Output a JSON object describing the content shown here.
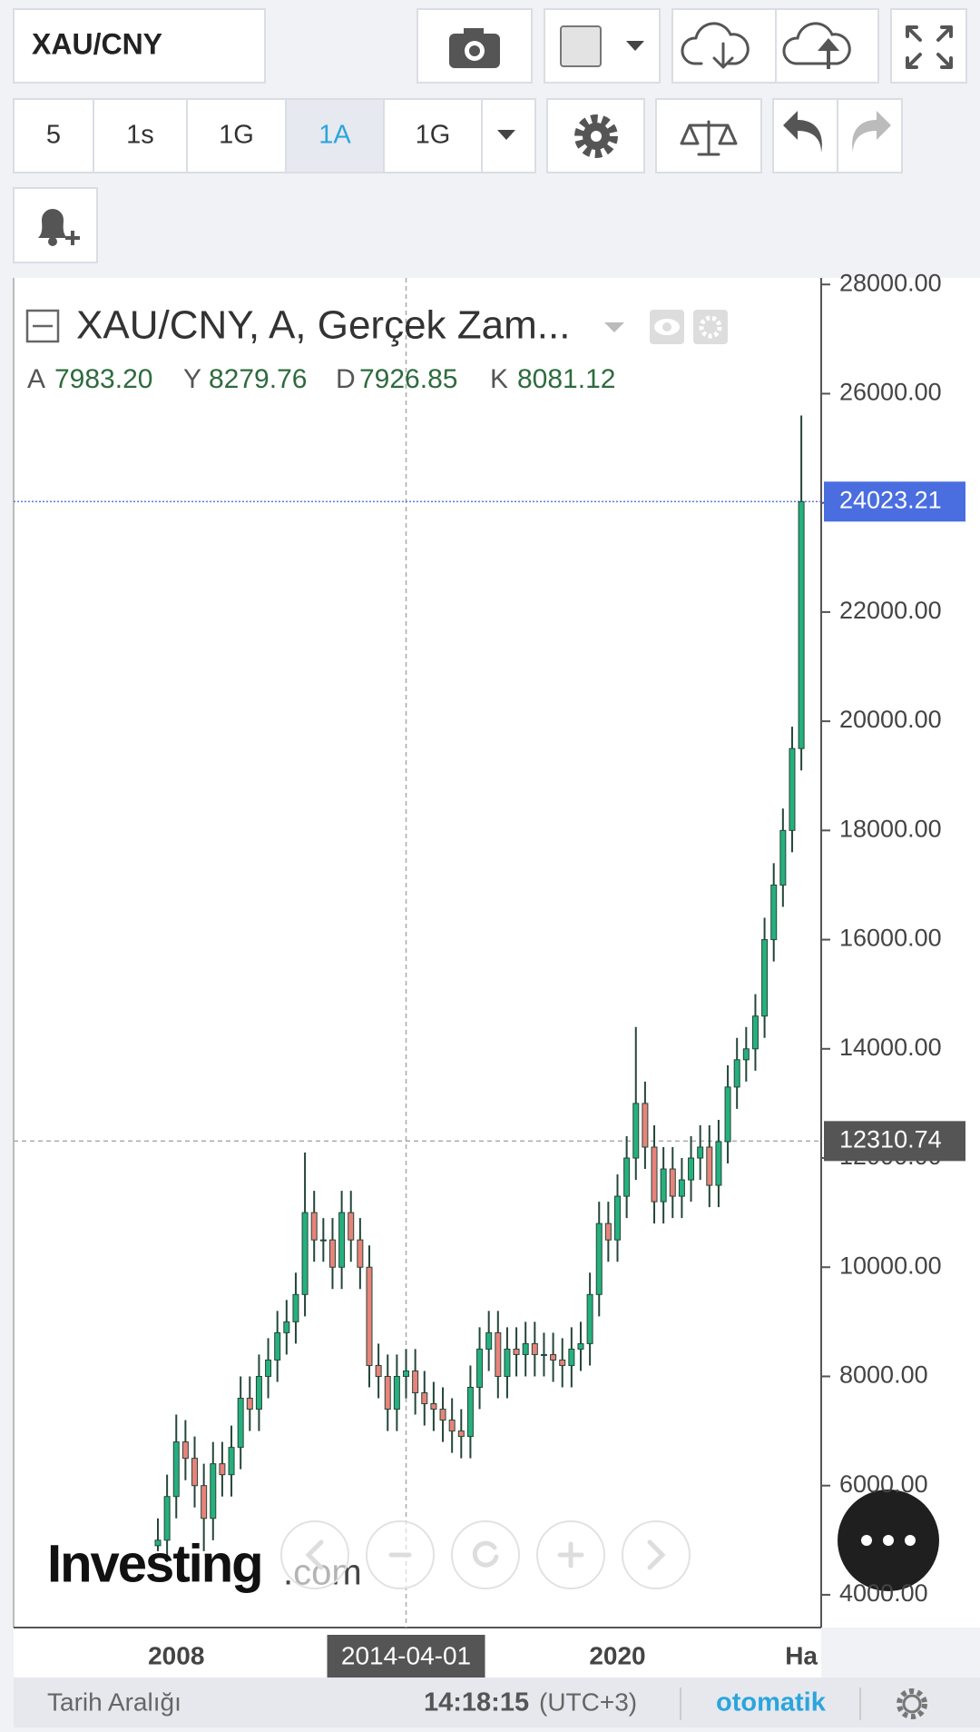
{
  "toolbar": {
    "symbol": "XAU/CNY",
    "intervals": [
      "5",
      "1s",
      "1G",
      "1A",
      "1G"
    ],
    "active_interval": "1A"
  },
  "chart_data": {
    "type": "candlestick",
    "title": "XAU/CNY, A, Gerçek Zam...",
    "ohlc_legend": [
      {
        "key": "A",
        "text": "7983.20"
      },
      {
        "key": "Y",
        "text": "8279.76"
      },
      {
        "key": "D",
        "text": "7926.85"
      },
      {
        "key": "K",
        "text": "8081.12"
      }
    ],
    "categories": [
      null,
      null,
      "2008",
      null,
      null,
      null,
      null,
      null,
      null,
      null,
      null,
      null,
      null,
      null,
      null,
      null,
      null,
      null,
      null,
      null,
      null,
      null,
      null,
      null,
      null,
      null,
      null,
      "2014-04-01",
      null,
      null,
      null,
      null,
      null,
      null,
      null,
      null,
      null,
      null,
      null,
      null,
      null,
      null,
      null,
      null,
      null,
      null,
      null,
      null,
      null,
      null,
      "2020",
      null,
      null,
      null,
      null,
      null,
      null,
      null,
      null,
      null,
      null,
      null,
      null,
      null,
      null,
      null,
      null,
      null,
      null,
      null,
      "Ha"
    ],
    "open": [
      4900,
      5000,
      5800,
      6800,
      6500,
      6000,
      5400,
      6400,
      6200,
      6700,
      7600,
      7400,
      8000,
      8300,
      8800,
      9000,
      9500,
      11000,
      10500,
      10500,
      10000,
      11000,
      10500,
      10000,
      8200,
      8000,
      7400,
      8000,
      8100,
      7700,
      7500,
      7400,
      7200,
      7000,
      6900,
      7800,
      8500,
      8800,
      8000,
      8500,
      8400,
      8600,
      8400,
      8400,
      8300,
      8200,
      8500,
      8600,
      9500,
      10800,
      10500,
      11300,
      12000,
      13000,
      12200,
      11200,
      11800,
      11300,
      11600,
      12000,
      12200,
      11500,
      12300,
      13300,
      13800,
      14000,
      14600,
      16000,
      17000,
      18000,
      19500
    ],
    "high": [
      5400,
      6200,
      7300,
      7200,
      6900,
      6400,
      6800,
      6800,
      7100,
      8000,
      8000,
      8400,
      8700,
      9200,
      9400,
      9900,
      12100,
      11400,
      10900,
      10900,
      11400,
      11400,
      10900,
      10400,
      8600,
      8400,
      8400,
      8500,
      8500,
      8100,
      7900,
      7800,
      7600,
      7400,
      8200,
      8900,
      9200,
      9200,
      8900,
      8900,
      9000,
      9000,
      8800,
      8800,
      8700,
      8900,
      9000,
      9900,
      11200,
      11200,
      11700,
      12400,
      14400,
      13400,
      12600,
      12200,
      12200,
      12000,
      12400,
      12600,
      12600,
      12700,
      13700,
      14200,
      14400,
      15000,
      16400,
      17400,
      18400,
      19900,
      25600
    ],
    "low": [
      4800,
      4600,
      5400,
      6100,
      5600,
      4800,
      5000,
      5800,
      5800,
      6300,
      7000,
      7000,
      7600,
      7900,
      8400,
      8600,
      9100,
      10100,
      10100,
      9600,
      9600,
      10100,
      9600,
      7800,
      7600,
      7000,
      7000,
      7600,
      7300,
      7100,
      7000,
      6800,
      6600,
      6500,
      6500,
      7400,
      8100,
      7600,
      7600,
      8000,
      8000,
      8000,
      8000,
      7900,
      7800,
      7800,
      8100,
      8200,
      9100,
      10100,
      10100,
      10900,
      11600,
      11800,
      10800,
      10800,
      10900,
      10900,
      11200,
      11600,
      11100,
      11100,
      11900,
      12900,
      13400,
      13600,
      14200,
      15600,
      16600,
      17600,
      19100
    ],
    "close": [
      5000,
      5800,
      6800,
      6500,
      6000,
      5400,
      6400,
      6200,
      6700,
      7600,
      7400,
      8000,
      8300,
      8800,
      9000,
      9500,
      11000,
      10500,
      10500,
      10000,
      11000,
      10500,
      10000,
      8200,
      8000,
      7400,
      8000,
      8100,
      7700,
      7500,
      7400,
      7200,
      7000,
      6900,
      7800,
      8500,
      8800,
      8000,
      8500,
      8400,
      8600,
      8400,
      8400,
      8300,
      8200,
      8500,
      8600,
      9500,
      10800,
      10500,
      11300,
      12000,
      13000,
      12200,
      11200,
      11800,
      11300,
      11600,
      12000,
      12200,
      11500,
      12300,
      13300,
      13800,
      14000,
      14600,
      16000,
      17000,
      18000,
      19500,
      24023.21
    ],
    "up_color": "#26b07e",
    "down_color": "#e8837a",
    "ylim": [
      3400,
      28120
    ],
    "yticks": [
      {
        "value": 4000,
        "label": "4000.00"
      },
      {
        "value": 6000,
        "label": "6000.00"
      },
      {
        "value": 8000,
        "label": "8000.00"
      },
      {
        "value": 10000,
        "label": "10000.00"
      },
      {
        "value": 12000,
        "label": "12000.00"
      },
      {
        "value": 14000,
        "label": "14000.00"
      },
      {
        "value": 16000,
        "label": "16000.00"
      },
      {
        "value": 18000,
        "label": "18000.00"
      },
      {
        "value": 20000,
        "label": "20000.00"
      },
      {
        "value": 22000,
        "label": "22000.00"
      },
      {
        "value": 24000,
        "label": "24000.00"
      },
      {
        "value": 26000,
        "label": "26000.00"
      },
      {
        "value": 28000,
        "label": "28000.00"
      }
    ],
    "last_price": 24023.21,
    "crosshair": {
      "x": "2014-04-01",
      "y": 12310.74
    }
  },
  "watermark": {
    "brand": "Investing",
    "suffix": ".com"
  },
  "footer": {
    "range": "Tarih Aralığı",
    "time": "14:18:15",
    "timezone": "(UTC+3)",
    "mode": "otomatik"
  }
}
